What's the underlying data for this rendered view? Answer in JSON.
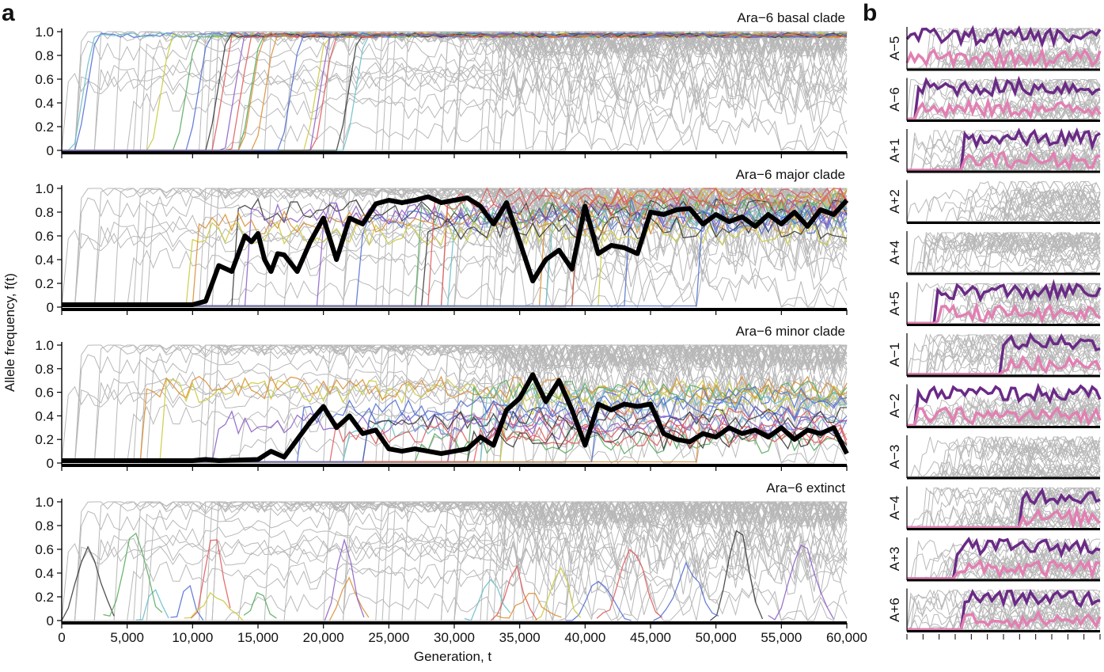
{
  "panel_a": {
    "label": "a",
    "ylabel": "Allele frequency, f(t)",
    "xlabel": "Generation, t",
    "x_ticks": [
      "0",
      "5,000",
      "10,000",
      "15,000",
      "20,000",
      "25,000",
      "30,000",
      "35,000",
      "40,000",
      "45,000",
      "50,000",
      "55,000",
      "60,000"
    ],
    "y_ticks": [
      "0",
      "0.2",
      "0.4",
      "0.6",
      "0.8",
      "1.0"
    ]
  },
  "panel_b": {
    "label": "b",
    "rows": [
      "A−5",
      "A−6",
      "A+1",
      "A+2",
      "A+4",
      "A+5",
      "A−1",
      "A−2",
      "A−3",
      "A−4",
      "A+3",
      "A+6"
    ]
  },
  "colors": {
    "background_traj": "#b8b8b8",
    "clade_mean": "#000000",
    "purple": "#6a2a86",
    "pink": "#e27fb2",
    "palette": [
      "#e05656",
      "#4d6bd1",
      "#53a85a",
      "#c9c93a",
      "#8b5cc4",
      "#66bcc7",
      "#333333",
      "#d98c2f"
    ]
  },
  "chart_data": [
    {
      "type": "line",
      "title": "Ara−6 basal clade",
      "xlim": [
        0,
        60000
      ],
      "ylim": [
        0,
        1
      ],
      "x_ticks": [
        0,
        5000,
        10000,
        15000,
        20000,
        25000,
        30000,
        35000,
        40000,
        45000,
        50000,
        55000,
        60000
      ],
      "y_ticks": [
        0,
        0.2,
        0.4,
        0.6,
        0.8,
        1.0
      ],
      "note_series": "many coloured mutation trajectories that sweep to fixation early; grey trajectories from other clades",
      "series": []
    },
    {
      "type": "line",
      "title": "Ara−6 major clade",
      "xlim": [
        0,
        60000
      ],
      "ylim": [
        0,
        1
      ],
      "series": [
        {
          "x": [
            0,
            5000,
            10000,
            11000,
            12000,
            13000,
            14000,
            14500,
            15000,
            15500,
            16000,
            16500,
            17000,
            18000,
            19000,
            20000,
            21000,
            22000,
            23000,
            24000,
            25000,
            26000,
            27000,
            28000,
            29000,
            30000,
            31000,
            32000,
            33000,
            34000,
            35000,
            36000,
            37000,
            38000,
            39000,
            40000,
            41000,
            42000,
            43000,
            44000,
            45000,
            46000,
            47000,
            48000,
            49000,
            50000,
            51000,
            52000,
            53000,
            54000,
            55000,
            56000,
            57000,
            58000,
            59000,
            60000
          ],
          "y": [
            0.02,
            0.02,
            0.02,
            0.05,
            0.35,
            0.3,
            0.6,
            0.55,
            0.62,
            0.4,
            0.3,
            0.45,
            0.44,
            0.3,
            0.55,
            0.75,
            0.4,
            0.75,
            0.7,
            0.87,
            0.9,
            0.88,
            0.9,
            0.93,
            0.88,
            0.9,
            0.92,
            0.85,
            0.7,
            0.88,
            0.55,
            0.22,
            0.4,
            0.48,
            0.32,
            0.85,
            0.45,
            0.52,
            0.5,
            0.45,
            0.8,
            0.78,
            0.82,
            0.83,
            0.7,
            0.78,
            0.72,
            0.76,
            0.68,
            0.78,
            0.7,
            0.8,
            0.68,
            0.82,
            0.78,
            0.9
          ]
        }
      ]
    },
    {
      "type": "line",
      "title": "Ara−6 minor clade",
      "xlim": [
        0,
        60000
      ],
      "ylim": [
        0,
        1
      ],
      "series": [
        {
          "x": [
            0,
            5000,
            10000,
            11000,
            12000,
            15000,
            16000,
            17000,
            18000,
            19000,
            20000,
            21000,
            22000,
            23000,
            24000,
            25000,
            26000,
            27000,
            28000,
            29000,
            30000,
            31000,
            32000,
            33000,
            34000,
            35000,
            36000,
            37000,
            38000,
            39000,
            40000,
            41000,
            42000,
            43000,
            44000,
            45000,
            46000,
            47000,
            48000,
            49000,
            50000,
            51000,
            52000,
            53000,
            54000,
            55000,
            56000,
            57000,
            58000,
            59000,
            60000
          ],
          "y": [
            0.02,
            0.02,
            0.02,
            0.03,
            0.02,
            0.03,
            0.1,
            0.05,
            0.2,
            0.35,
            0.48,
            0.3,
            0.4,
            0.25,
            0.28,
            0.12,
            0.1,
            0.12,
            0.1,
            0.08,
            0.1,
            0.12,
            0.22,
            0.15,
            0.45,
            0.55,
            0.75,
            0.52,
            0.7,
            0.45,
            0.15,
            0.5,
            0.45,
            0.5,
            0.48,
            0.5,
            0.25,
            0.2,
            0.18,
            0.25,
            0.22,
            0.3,
            0.25,
            0.28,
            0.22,
            0.3,
            0.2,
            0.28,
            0.25,
            0.3,
            0.08
          ]
        }
      ]
    },
    {
      "type": "line",
      "title": "Ara−6 extinct",
      "xlim": [
        0,
        60000
      ],
      "ylim": [
        0,
        1
      ],
      "series": []
    }
  ]
}
